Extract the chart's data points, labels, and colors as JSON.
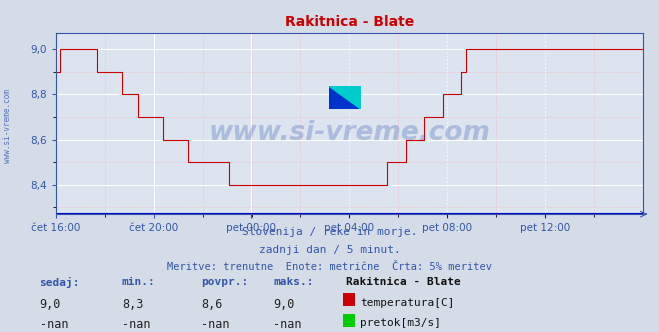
{
  "title": "Rakitnica - Blate",
  "bg_color": "#d4dce8",
  "plot_bg_color": "#dce4f0",
  "grid_color": "#ffffff",
  "grid_minor_color": "#f0c8cc",
  "xlabel_color": "#3355aa",
  "ylabel_color": "#3355aa",
  "line_color": "#cc0000",
  "line2_color": "#0000cc",
  "watermark_color": "#3355aa",
  "axis_color": "#3355aa",
  "ylim": [
    8.27,
    9.07
  ],
  "yticks": [
    8.4,
    8.6,
    8.8,
    9.0
  ],
  "xtick_labels": [
    "čet 16:00",
    "čet 20:00",
    "pet 00:00",
    "pet 04:00",
    "pet 08:00",
    "pet 12:00"
  ],
  "footer_line1": "Slovenija / reke in morje.",
  "footer_line2": "zadnji dan / 5 minut.",
  "footer_line3": "Meritve: trenutne  Enote: metrične  Črta: 5% meritev",
  "info_header": [
    "sedaj:",
    "min.:",
    "povpr.:",
    "maks.:"
  ],
  "info_values_temp": [
    "9,0",
    "8,3",
    "8,6",
    "9,0"
  ],
  "info_values_flow": [
    "-nan",
    "-nan",
    "-nan",
    "-nan"
  ],
  "legend_label1": "temperatura[C]",
  "legend_label2": "pretok[m3/s]",
  "legend_color1": "#cc0000",
  "legend_color2": "#00cc00",
  "station_name": "Rakitnica - Blate",
  "temp_data": [
    8.9,
    8.9,
    9.0,
    9.0,
    9.0,
    9.0,
    9.0,
    9.0,
    9.0,
    9.0,
    9.0,
    9.0,
    9.0,
    9.0,
    9.0,
    9.0,
    9.0,
    9.0,
    9.0,
    9.0,
    8.9,
    8.9,
    8.9,
    8.9,
    8.9,
    8.9,
    8.9,
    8.9,
    8.9,
    8.9,
    8.9,
    8.9,
    8.8,
    8.8,
    8.8,
    8.8,
    8.8,
    8.8,
    8.8,
    8.8,
    8.7,
    8.7,
    8.7,
    8.7,
    8.7,
    8.7,
    8.7,
    8.7,
    8.7,
    8.7,
    8.7,
    8.7,
    8.6,
    8.6,
    8.6,
    8.6,
    8.6,
    8.6,
    8.6,
    8.6,
    8.6,
    8.6,
    8.6,
    8.6,
    8.5,
    8.5,
    8.5,
    8.5,
    8.5,
    8.5,
    8.5,
    8.5,
    8.5,
    8.5,
    8.5,
    8.5,
    8.5,
    8.5,
    8.5,
    8.5,
    8.5,
    8.5,
    8.5,
    8.5,
    8.4,
    8.4,
    8.4,
    8.4,
    8.4,
    8.4,
    8.4,
    8.4,
    8.4,
    8.4,
    8.4,
    8.4,
    8.4,
    8.4,
    8.4,
    8.4,
    8.4,
    8.4,
    8.4,
    8.4,
    8.4,
    8.4,
    8.4,
    8.4,
    8.4,
    8.4,
    8.4,
    8.4,
    8.4,
    8.4,
    8.4,
    8.4,
    8.4,
    8.4,
    8.4,
    8.4,
    8.4,
    8.4,
    8.4,
    8.4,
    8.4,
    8.4,
    8.4,
    8.4,
    8.4,
    8.4,
    8.4,
    8.4,
    8.4,
    8.4,
    8.4,
    8.4,
    8.4,
    8.4,
    8.4,
    8.4,
    8.4,
    8.4,
    8.4,
    8.4,
    8.4,
    8.4,
    8.4,
    8.4,
    8.4,
    8.4,
    8.4,
    8.4,
    8.4,
    8.4,
    8.4,
    8.4,
    8.4,
    8.4,
    8.4,
    8.4,
    8.4,
    8.5,
    8.5,
    8.5,
    8.5,
    8.5,
    8.5,
    8.5,
    8.5,
    8.5,
    8.6,
    8.6,
    8.6,
    8.6,
    8.6,
    8.6,
    8.6,
    8.6,
    8.6,
    8.7,
    8.7,
    8.7,
    8.7,
    8.7,
    8.7,
    8.7,
    8.7,
    8.7,
    8.8,
    8.8,
    8.8,
    8.8,
    8.8,
    8.8,
    8.8,
    8.8,
    8.8,
    8.9,
    8.9,
    9.0,
    9.0,
    9.0,
    9.0,
    9.0,
    9.0,
    9.0,
    9.0,
    9.0,
    9.0,
    9.0,
    9.0,
    9.0,
    9.0,
    9.0,
    9.0,
    9.0,
    9.0,
    9.0,
    9.0,
    9.0,
    9.0,
    9.0,
    9.0,
    9.0,
    9.0,
    9.0,
    9.0,
    9.0,
    9.0,
    9.0,
    9.0,
    9.0,
    9.0,
    9.0,
    9.0,
    9.0,
    9.0,
    9.0,
    9.0,
    9.0,
    9.0,
    9.0,
    9.0,
    9.0,
    9.0,
    9.0,
    9.0,
    9.0,
    9.0,
    9.0,
    9.0,
    9.0,
    9.0,
    9.0,
    9.0,
    9.0,
    9.0,
    9.0,
    9.0,
    9.0,
    9.0,
    9.0,
    9.0,
    9.0,
    9.0,
    9.0,
    9.0,
    9.0,
    9.0,
    9.0,
    9.0,
    9.0,
    9.0,
    9.0,
    9.0,
    9.0,
    9.0,
    9.0,
    9.0,
    9.0,
    9.0,
    9.0,
    9.0,
    9.0,
    9.0,
    9.0
  ],
  "n_points": 288,
  "xtick_positions_frac": [
    0.0,
    0.1667,
    0.3333,
    0.5,
    0.6667,
    0.8333
  ]
}
